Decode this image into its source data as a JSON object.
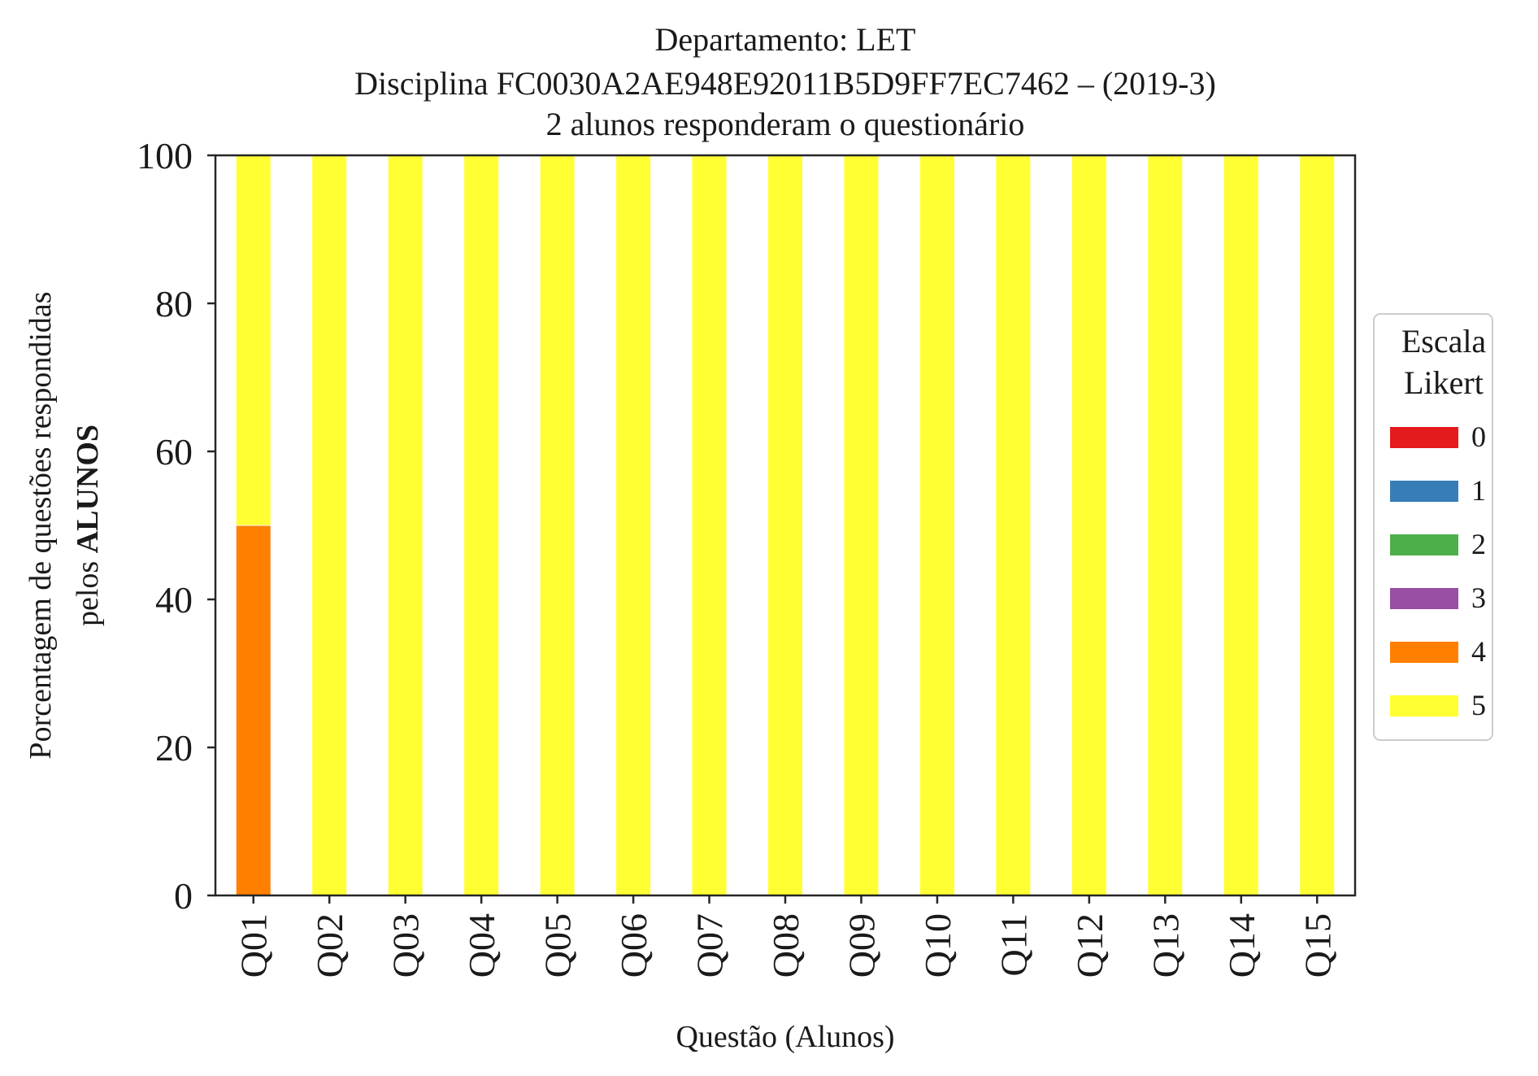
{
  "chart_data": {
    "type": "bar",
    "stacked": true,
    "title_lines": [
      "Departamento: LET",
      "Disciplina FC0030A2AE948E92011B5D9FF7EC7462 – (2019-3)",
      "2 alunos responderam o questionário"
    ],
    "xlabel": "Questão (Alunos)",
    "ylabel_line1": "Porcentagem de questões respondidas",
    "ylabel_line2_prefix": "pelos ",
    "ylabel_line2_bold": "ALUNOS",
    "ylim": [
      0,
      100
    ],
    "yticks": [
      0,
      20,
      40,
      60,
      80,
      100
    ],
    "categories": [
      "Q01",
      "Q02",
      "Q03",
      "Q04",
      "Q05",
      "Q06",
      "Q07",
      "Q08",
      "Q09",
      "Q10",
      "Q11",
      "Q12",
      "Q13",
      "Q14",
      "Q15"
    ],
    "legend_title_lines": [
      "Escala",
      "Likert"
    ],
    "legend_position": "center-right",
    "grid": false,
    "series": [
      {
        "name": "0",
        "color": "#e41a1c",
        "values": [
          0,
          0,
          0,
          0,
          0,
          0,
          0,
          0,
          0,
          0,
          0,
          0,
          0,
          0,
          0
        ]
      },
      {
        "name": "1",
        "color": "#377eb8",
        "values": [
          0,
          0,
          0,
          0,
          0,
          0,
          0,
          0,
          0,
          0,
          0,
          0,
          0,
          0,
          0
        ]
      },
      {
        "name": "2",
        "color": "#4daf4a",
        "values": [
          0,
          0,
          0,
          0,
          0,
          0,
          0,
          0,
          0,
          0,
          0,
          0,
          0,
          0,
          0
        ]
      },
      {
        "name": "3",
        "color": "#984ea3",
        "values": [
          0,
          0,
          0,
          0,
          0,
          0,
          0,
          0,
          0,
          0,
          0,
          0,
          0,
          0,
          0
        ]
      },
      {
        "name": "4",
        "color": "#ff7f00",
        "values": [
          50,
          0,
          0,
          0,
          0,
          0,
          0,
          0,
          0,
          0,
          0,
          0,
          0,
          0,
          0
        ]
      },
      {
        "name": "5",
        "color": "#ffff33",
        "values": [
          50,
          100,
          100,
          100,
          100,
          100,
          100,
          100,
          100,
          100,
          100,
          100,
          100,
          100,
          100
        ]
      }
    ]
  }
}
